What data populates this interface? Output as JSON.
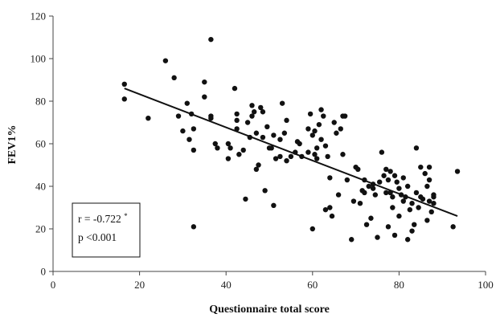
{
  "chart_data": {
    "type": "scatter",
    "title": "",
    "xlabel": "Questionnaire total score",
    "ylabel": "FEV1%",
    "xlim": [
      0,
      100
    ],
    "ylim": [
      0,
      120
    ],
    "x_ticks": [
      "0",
      "20",
      "40",
      "60",
      "80",
      "100"
    ],
    "y_ticks": [
      "0",
      "20",
      "40",
      "60",
      "80",
      "100",
      "120"
    ],
    "grid": false,
    "legend": "none",
    "point_color": "#111111",
    "trendline": {
      "type": "linear",
      "points": [
        [
          16.5,
          86
        ],
        [
          93.5,
          26
        ]
      ]
    },
    "annotation": {
      "r_text": "r = -0.722",
      "r_sup": "*",
      "p_text": "p <0.001",
      "position": "bottom-left"
    },
    "points": [
      [
        16.5,
        81
      ],
      [
        16.5,
        88
      ],
      [
        22,
        72
      ],
      [
        26,
        99
      ],
      [
        28,
        91
      ],
      [
        29,
        73
      ],
      [
        30,
        66
      ],
      [
        31,
        79
      ],
      [
        31.5,
        62
      ],
      [
        32,
        74
      ],
      [
        32.5,
        57
      ],
      [
        32.5,
        67
      ],
      [
        32.5,
        21
      ],
      [
        35,
        89
      ],
      [
        35,
        82
      ],
      [
        36.5,
        109
      ],
      [
        36.5,
        73
      ],
      [
        36.5,
        72
      ],
      [
        37.5,
        60
      ],
      [
        38,
        58
      ],
      [
        40.5,
        60
      ],
      [
        40.5,
        53
      ],
      [
        41,
        58
      ],
      [
        42,
        86
      ],
      [
        42.5,
        74
      ],
      [
        42.5,
        71
      ],
      [
        42.5,
        67
      ],
      [
        43,
        55
      ],
      [
        44,
        57
      ],
      [
        44.5,
        34
      ],
      [
        45,
        70
      ],
      [
        45.5,
        63
      ],
      [
        46,
        78
      ],
      [
        46,
        73
      ],
      [
        46.5,
        75
      ],
      [
        47,
        65
      ],
      [
        47,
        48
      ],
      [
        47.5,
        50
      ],
      [
        48,
        77
      ],
      [
        48.5,
        75
      ],
      [
        48.5,
        63
      ],
      [
        49,
        38
      ],
      [
        49.5,
        68
      ],
      [
        50,
        58
      ],
      [
        50.5,
        58
      ],
      [
        51,
        64
      ],
      [
        51,
        31
      ],
      [
        51.5,
        53
      ],
      [
        52.5,
        54
      ],
      [
        52.5,
        62
      ],
      [
        53,
        79
      ],
      [
        53.5,
        65
      ],
      [
        54,
        71
      ],
      [
        54,
        52
      ],
      [
        55,
        54
      ],
      [
        56,
        56
      ],
      [
        56.5,
        61
      ],
      [
        57,
        60
      ],
      [
        57.5,
        54
      ],
      [
        59,
        67
      ],
      [
        59,
        56
      ],
      [
        59.5,
        74
      ],
      [
        60,
        20
      ],
      [
        60,
        64
      ],
      [
        60.5,
        66
      ],
      [
        60.5,
        55
      ],
      [
        61,
        58
      ],
      [
        61,
        53
      ],
      [
        61.5,
        69
      ],
      [
        62,
        76
      ],
      [
        62,
        62
      ],
      [
        62.5,
        73
      ],
      [
        63,
        59
      ],
      [
        63,
        29
      ],
      [
        63.5,
        54
      ],
      [
        64,
        30
      ],
      [
        64,
        44
      ],
      [
        64.5,
        26
      ],
      [
        65,
        70
      ],
      [
        65.5,
        65
      ],
      [
        66,
        36
      ],
      [
        66.5,
        67
      ],
      [
        67,
        73
      ],
      [
        67,
        55
      ],
      [
        67.5,
        73
      ],
      [
        68,
        43
      ],
      [
        69,
        15
      ],
      [
        69.5,
        33
      ],
      [
        70,
        49
      ],
      [
        70.5,
        48
      ],
      [
        71,
        32
      ],
      [
        71.5,
        38
      ],
      [
        72,
        37
      ],
      [
        72,
        43
      ],
      [
        72.5,
        22
      ],
      [
        73,
        40
      ],
      [
        73.5,
        25
      ],
      [
        74,
        41
      ],
      [
        74,
        39
      ],
      [
        74.5,
        36
      ],
      [
        75,
        16
      ],
      [
        75.5,
        42
      ],
      [
        76,
        56
      ],
      [
        76.5,
        45
      ],
      [
        77,
        48
      ],
      [
        77,
        37
      ],
      [
        77.5,
        43
      ],
      [
        77.5,
        21
      ],
      [
        78,
        47
      ],
      [
        78,
        37
      ],
      [
        78.5,
        35
      ],
      [
        78.5,
        30
      ],
      [
        79,
        45
      ],
      [
        79,
        17
      ],
      [
        79.5,
        42
      ],
      [
        80,
        26
      ],
      [
        80,
        39
      ],
      [
        80.5,
        36
      ],
      [
        81,
        44
      ],
      [
        81,
        33
      ],
      [
        81.5,
        35
      ],
      [
        82,
        15
      ],
      [
        82,
        40
      ],
      [
        82.5,
        29
      ],
      [
        83,
        19
      ],
      [
        83,
        32
      ],
      [
        83.5,
        22
      ],
      [
        84,
        58
      ],
      [
        84,
        37
      ],
      [
        84.5,
        30
      ],
      [
        85,
        35
      ],
      [
        85,
        49
      ],
      [
        85.5,
        34
      ],
      [
        86,
        46
      ],
      [
        86.5,
        40
      ],
      [
        86.5,
        24
      ],
      [
        87,
        43
      ],
      [
        87,
        49
      ],
      [
        87,
        33
      ],
      [
        87.5,
        28
      ],
      [
        88,
        32
      ],
      [
        88,
        35
      ],
      [
        88,
        36
      ],
      [
        92.5,
        21
      ],
      [
        93.5,
        47
      ]
    ]
  }
}
